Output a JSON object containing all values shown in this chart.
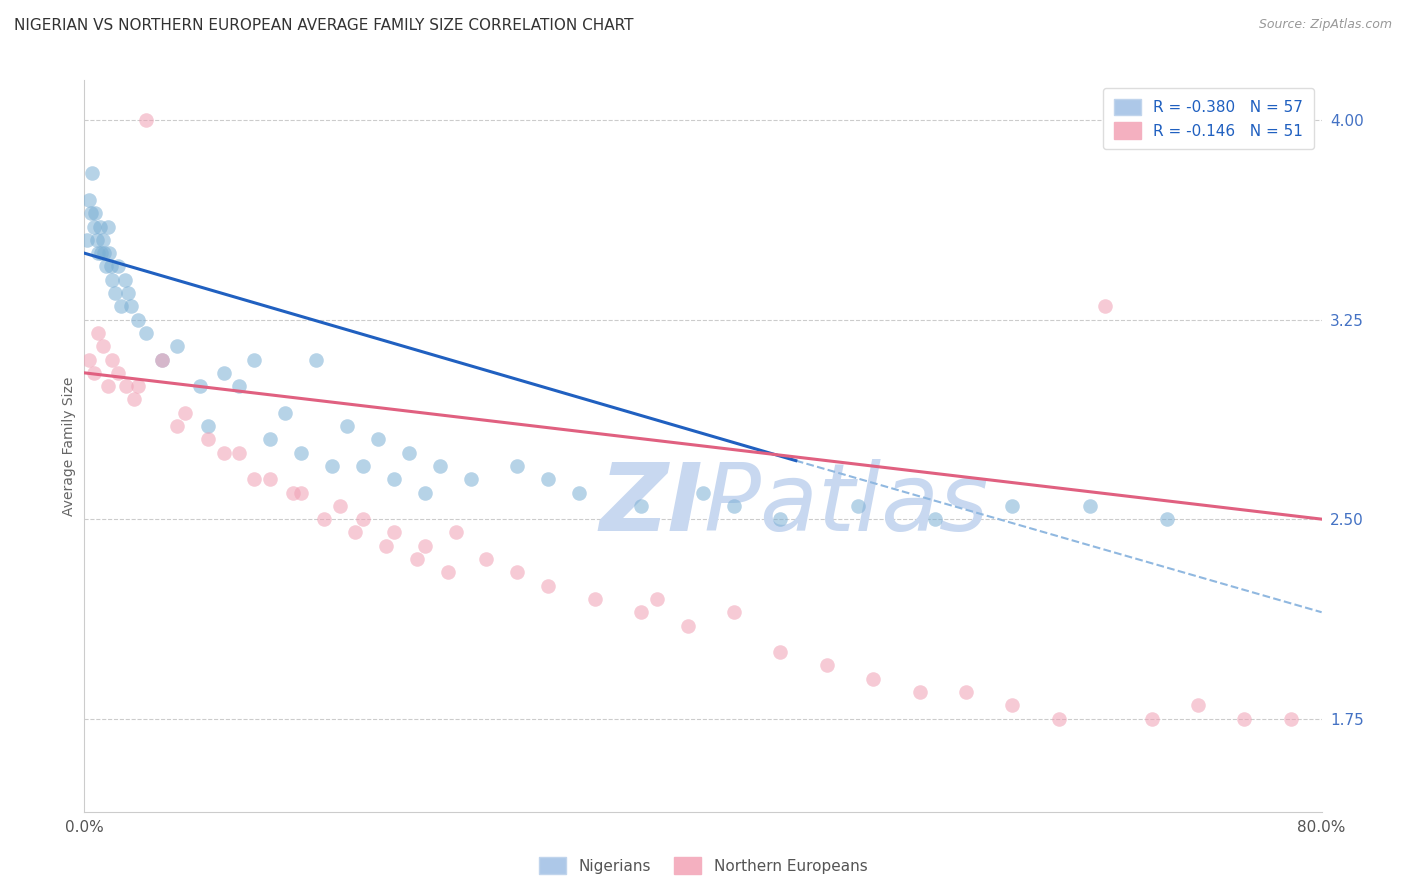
{
  "title": "NIGERIAN VS NORTHERN EUROPEAN AVERAGE FAMILY SIZE CORRELATION CHART",
  "source": "Source: ZipAtlas.com",
  "ylabel": "Average Family Size",
  "xmin": 0.0,
  "xmax": 80.0,
  "ymin": 1.4,
  "ymax": 4.15,
  "yticks": [
    1.75,
    2.5,
    3.25,
    4.0
  ],
  "right_axis_color": "#4472c4",
  "legend_entries": [
    {
      "label": "R = -0.380   N = 57"
    },
    {
      "label": "R = -0.146   N = 51"
    }
  ],
  "legend_bottom": [
    "Nigerians",
    "Northern Europeans"
  ],
  "blue_scatter_color": "#7bafd4",
  "pink_scatter_color": "#f0a0b4",
  "blue_line_color": "#2060c0",
  "pink_line_color": "#e06080",
  "blue_dashed_color": "#90b8e0",
  "grid_color": "#cccccc",
  "background_color": "#ffffff",
  "title_fontsize": 11,
  "source_fontsize": 9,
  "nigerians_x": [
    0.2,
    0.3,
    0.4,
    0.5,
    0.6,
    0.7,
    0.8,
    0.9,
    1.0,
    1.1,
    1.2,
    1.3,
    1.4,
    1.5,
    1.6,
    1.7,
    1.8,
    2.0,
    2.2,
    2.4,
    2.6,
    2.8,
    3.0,
    3.5,
    4.0,
    5.0,
    6.0,
    7.5,
    9.0,
    11.0,
    13.0,
    15.0,
    17.0,
    19.0,
    21.0,
    23.0,
    25.0,
    28.0,
    32.0,
    36.0,
    40.0,
    45.0,
    50.0,
    55.0,
    60.0,
    65.0,
    70.0,
    8.0,
    10.0,
    12.0,
    14.0,
    16.0,
    18.0,
    20.0,
    22.0,
    30.0,
    42.0
  ],
  "nigerians_y": [
    3.55,
    3.7,
    3.65,
    3.8,
    3.6,
    3.65,
    3.55,
    3.5,
    3.6,
    3.5,
    3.55,
    3.5,
    3.45,
    3.6,
    3.5,
    3.45,
    3.4,
    3.35,
    3.45,
    3.3,
    3.4,
    3.35,
    3.3,
    3.25,
    3.2,
    3.1,
    3.15,
    3.0,
    3.05,
    3.1,
    2.9,
    3.1,
    2.85,
    2.8,
    2.75,
    2.7,
    2.65,
    2.7,
    2.6,
    2.55,
    2.6,
    2.5,
    2.55,
    2.5,
    2.55,
    2.55,
    2.5,
    2.85,
    3.0,
    2.8,
    2.75,
    2.7,
    2.7,
    2.65,
    2.6,
    2.65,
    2.55
  ],
  "northern_europeans_x": [
    0.3,
    0.6,
    0.9,
    1.2,
    1.5,
    1.8,
    2.2,
    2.7,
    3.2,
    4.0,
    5.0,
    6.5,
    8.0,
    10.0,
    12.0,
    14.0,
    16.5,
    18.0,
    20.0,
    22.0,
    24.0,
    26.0,
    28.0,
    30.0,
    33.0,
    36.0,
    39.0,
    42.0,
    45.0,
    48.0,
    51.0,
    54.0,
    57.0,
    60.0,
    63.0,
    66.0,
    69.0,
    72.0,
    75.0,
    78.0,
    3.5,
    6.0,
    9.0,
    11.0,
    13.5,
    15.5,
    17.5,
    19.5,
    21.5,
    23.5,
    37.0
  ],
  "northern_europeans_y": [
    3.1,
    3.05,
    3.2,
    3.15,
    3.0,
    3.1,
    3.05,
    3.0,
    2.95,
    4.0,
    3.1,
    2.9,
    2.8,
    2.75,
    2.65,
    2.6,
    2.55,
    2.5,
    2.45,
    2.4,
    2.45,
    2.35,
    2.3,
    2.25,
    2.2,
    2.15,
    2.1,
    2.15,
    2.0,
    1.95,
    1.9,
    1.85,
    1.85,
    1.8,
    1.75,
    3.3,
    1.75,
    1.8,
    1.75,
    1.75,
    3.0,
    2.85,
    2.75,
    2.65,
    2.6,
    2.5,
    2.45,
    2.4,
    2.35,
    2.3,
    2.2
  ],
  "blue_trend_x0": 0.0,
  "blue_trend_y0": 3.5,
  "blue_trend_x1": 46.0,
  "blue_trend_y1": 2.72,
  "pink_trend_x0": 0.0,
  "pink_trend_y0": 3.05,
  "pink_trend_x1": 80.0,
  "pink_trend_y1": 2.5,
  "blue_dashed_x0": 46.0,
  "blue_dashed_y0": 2.72,
  "blue_dashed_x1": 80.0,
  "blue_dashed_y1": 2.15,
  "xtick_positions": [
    0.0,
    80.0
  ],
  "xtick_labels": [
    "0.0%",
    "80.0%"
  ],
  "watermark_zi": "ZI",
  "watermark_patlas": "Patlas",
  "watermark_color": "#c8d8f0",
  "marker_size": 110,
  "marker_linewidth": 1.5
}
